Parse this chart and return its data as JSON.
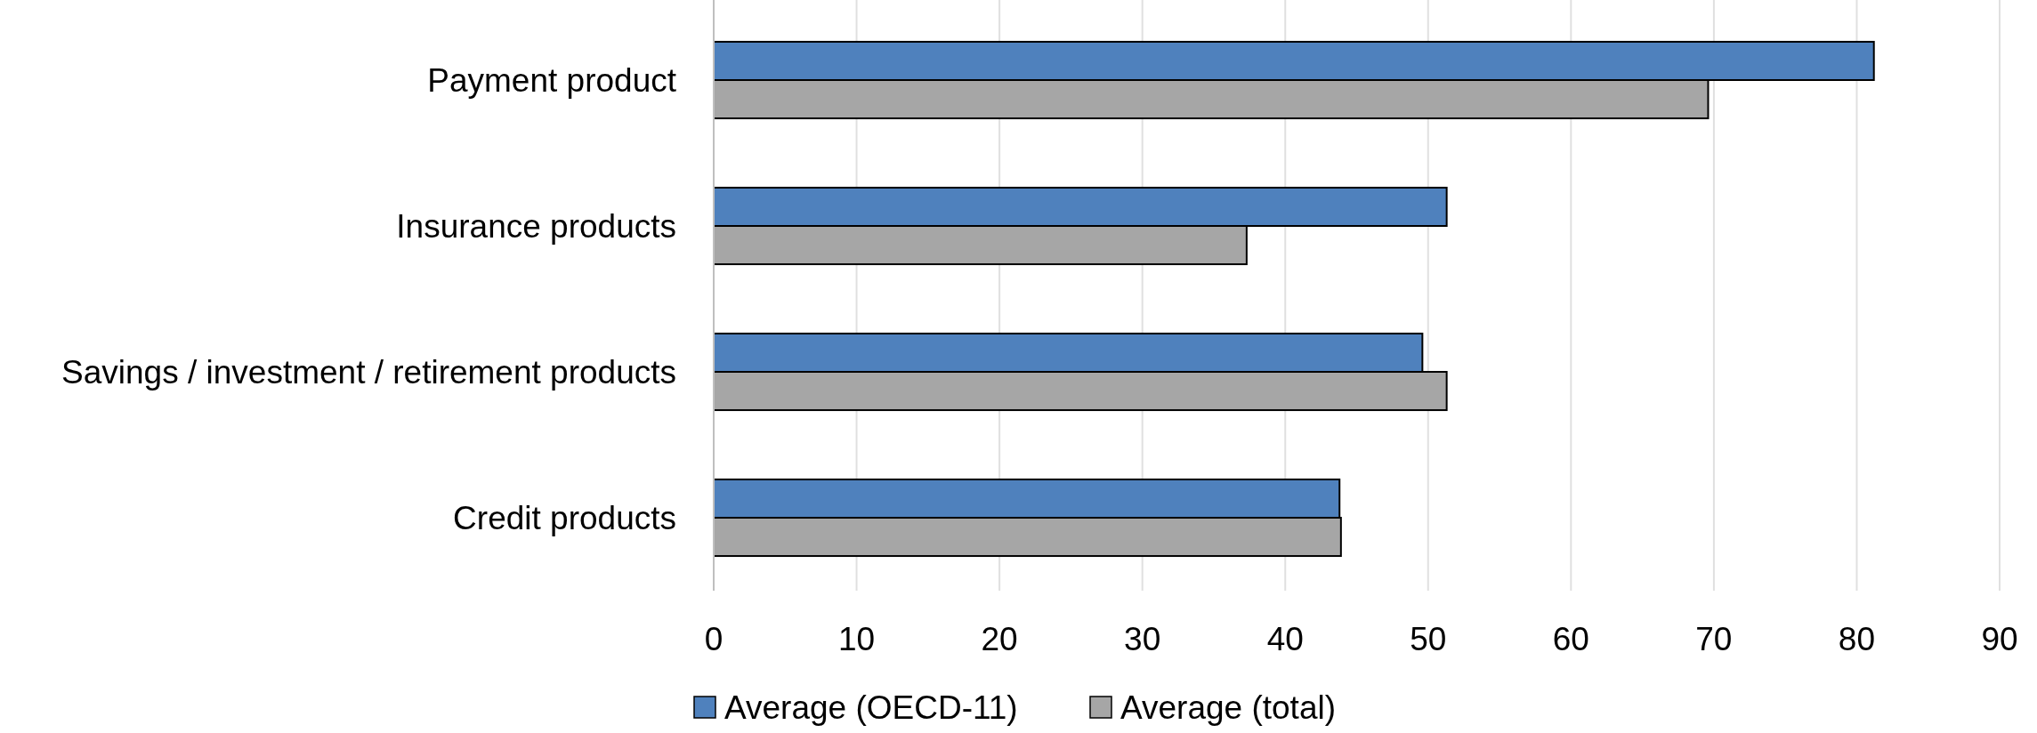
{
  "chart_data": {
    "type": "bar",
    "orientation": "horizontal",
    "categories": [
      "Payment product",
      "Insurance products",
      "Savings / investment / retirement products",
      "Credit products"
    ],
    "series": [
      {
        "name": "Average (OECD-11)",
        "color": "#4f81bd",
        "values": [
          81.2,
          51.3,
          49.6,
          43.8
        ]
      },
      {
        "name": "Average (total)",
        "color": "#a6a6a6",
        "values": [
          69.6,
          37.3,
          51.3,
          43.9
        ]
      }
    ],
    "xlim": [
      0,
      90
    ],
    "xticks": [
      0,
      10,
      20,
      30,
      40,
      50,
      60,
      70,
      80,
      90
    ],
    "grid": "x",
    "legend": "bottom"
  }
}
